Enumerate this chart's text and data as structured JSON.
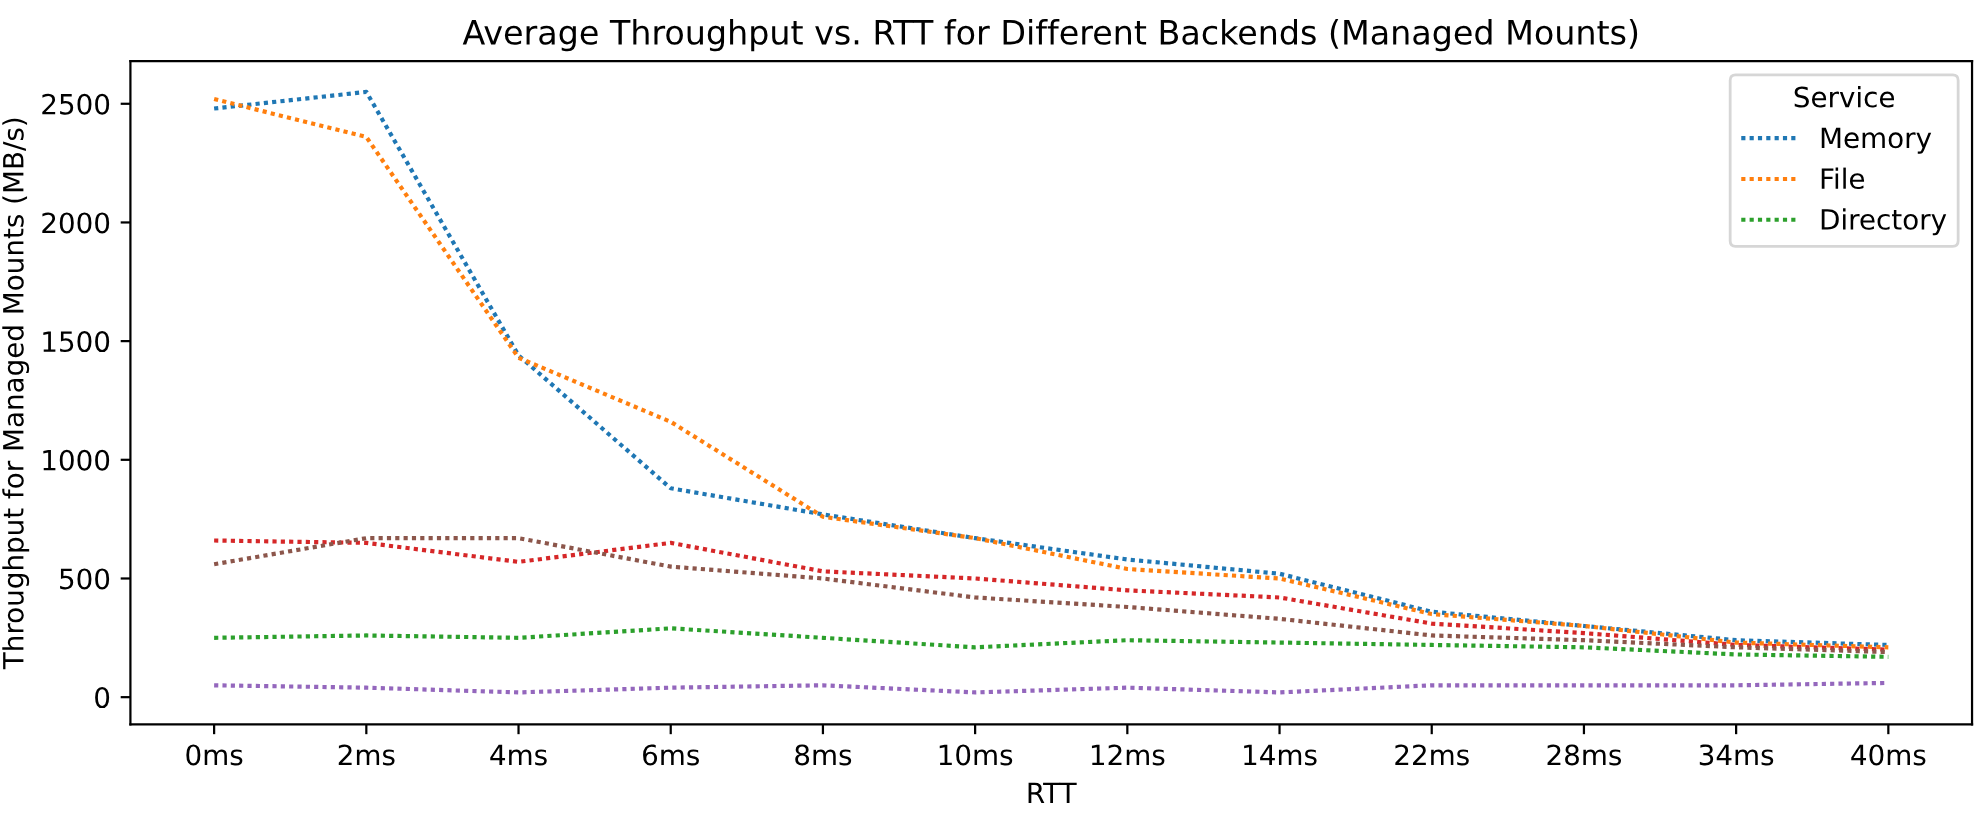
{
  "chart_data": {
    "type": "line",
    "title": "Average Throughput vs. RTT for Different Backends (Managed Mounts)",
    "xlabel": "RTT",
    "ylabel": "Throughput for Managed Mounts (MB/s)",
    "legend_title": "Service",
    "categories": [
      "0ms",
      "2ms",
      "4ms",
      "6ms",
      "8ms",
      "10ms",
      "12ms",
      "14ms",
      "22ms",
      "28ms",
      "34ms",
      "40ms"
    ],
    "series": [
      {
        "name": "Memory",
        "color": "#1f77b4",
        "values": [
          2480,
          2550,
          1440,
          880,
          770,
          670,
          580,
          520,
          360,
          300,
          240,
          220
        ]
      },
      {
        "name": "File",
        "color": "#ff7f0e",
        "values": [
          2520,
          2360,
          1430,
          1160,
          760,
          670,
          540,
          500,
          350,
          300,
          230,
          210
        ]
      },
      {
        "name": "Directory",
        "color": "#2ca02c",
        "values": [
          250,
          260,
          250,
          290,
          250,
          210,
          240,
          230,
          220,
          210,
          180,
          170
        ]
      },
      {
        "color": "#d62728",
        "values": [
          660,
          650,
          570,
          650,
          530,
          500,
          450,
          420,
          310,
          270,
          220,
          200
        ]
      },
      {
        "color": "#9467bd",
        "values": [
          50,
          40,
          20,
          40,
          50,
          20,
          40,
          20,
          50,
          50,
          50,
          60
        ]
      },
      {
        "color": "#8c564b",
        "values": [
          560,
          670,
          670,
          550,
          500,
          420,
          380,
          330,
          260,
          240,
          210,
          190
        ]
      }
    ],
    "ylim": [
      -115,
      2680
    ],
    "yticks": [
      0,
      500,
      1000,
      1500,
      2000,
      2500
    ],
    "grid": false,
    "legend": "top right",
    "line_style": "dotted",
    "marker": "none"
  }
}
